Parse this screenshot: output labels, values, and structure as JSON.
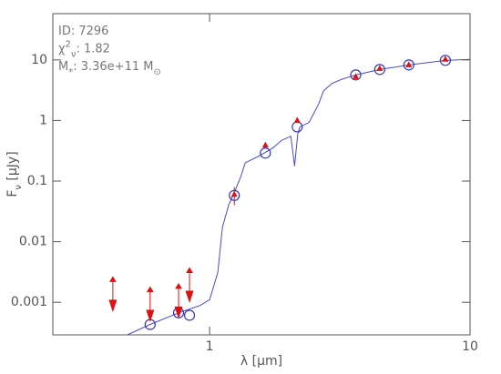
{
  "chart_data": {
    "type": "sed",
    "annotations": [
      [
        {
          "t": "ID: 7296"
        }
      ],
      [
        {
          "t": "χ"
        },
        {
          "t": "2",
          "shift": "sup"
        },
        {
          "t": "ν",
          "shift": "sub"
        },
        {
          "t": ": 1.82"
        }
      ],
      [
        {
          "t": "M"
        },
        {
          "t": "*",
          "shift": "sub"
        },
        {
          "t": ": 3.36e+11 M"
        },
        {
          "t": "⊙",
          "shift": "sub"
        }
      ]
    ],
    "x_label": [
      {
        "t": "λ [μm]"
      }
    ],
    "y_label": [
      {
        "t": "F"
      },
      {
        "t": "ν",
        "shift": "sub"
      },
      {
        "t": " [μJy]"
      }
    ],
    "xscale": "log",
    "yscale": "log",
    "xlim": [
      0.25,
      10
    ],
    "ylim": [
      0.00029,
      58
    ],
    "xticks": [
      1,
      10
    ],
    "yticks": [
      0.001,
      0.01,
      0.1,
      1,
      10
    ],
    "series": [
      {
        "kind": "line",
        "color": "#4a4ad0",
        "x": [
          0.483,
          0.59,
          0.76,
          0.915,
          1.0,
          1.075,
          1.12,
          1.185,
          1.24,
          1.316,
          1.37,
          1.55,
          1.745,
          1.89,
          2.05,
          2.12,
          2.18,
          2.22,
          2.41,
          2.62,
          2.74,
          2.95,
          3.2,
          3.64,
          4.5,
          5.82,
          8.04,
          10
        ],
        "values": [
          0.00029,
          0.00043,
          0.00067,
          0.00088,
          0.0011,
          0.0031,
          0.0174,
          0.041,
          0.063,
          0.117,
          0.2,
          0.26,
          0.35,
          0.47,
          0.55,
          0.177,
          0.6,
          0.785,
          0.93,
          1.86,
          3.1,
          4.1,
          4.75,
          5.65,
          6.95,
          8.26,
          9.83,
          10.2
        ]
      },
      {
        "kind": "circle",
        "color": "#3333cc",
        "x": [
          0.591,
          0.76,
          0.837,
          1.244,
          1.637,
          2.17,
          3.64,
          4.5,
          5.82,
          8.04
        ],
        "values": [
          0.00043,
          0.00067,
          0.00061,
          0.058,
          0.29,
          0.785,
          5.65,
          6.95,
          8.26,
          9.83
        ]
      },
      {
        "kind": "triangle",
        "color": "#e01010",
        "x": [
          1.244,
          1.637,
          2.17,
          3.64,
          4.5,
          5.82,
          8.04
        ],
        "values": [
          0.06,
          0.39,
          1.0,
          5.27,
          7.2,
          8.26,
          10.2
        ],
        "errors": [
          0.02,
          0.03,
          0.05,
          0.3,
          0.3,
          0.4,
          0.5
        ]
      },
      {
        "kind": "upper-limit",
        "color": "#e01010",
        "x": [
          0.425,
          0.591,
          0.76,
          0.837
        ],
        "values": [
          0.0022,
          0.0015,
          0.0017,
          0.0031
        ]
      }
    ]
  }
}
